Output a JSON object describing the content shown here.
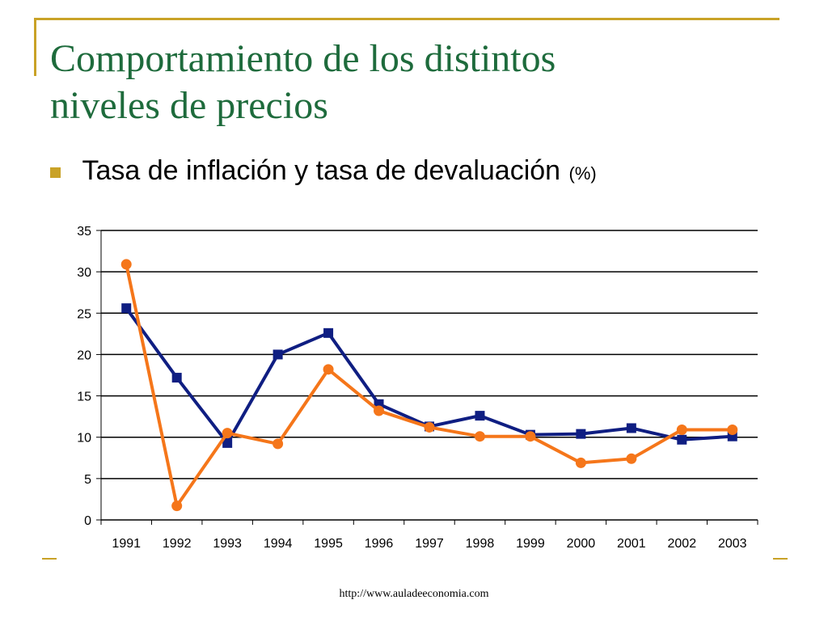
{
  "slide": {
    "title_line1": "Comportamiento de los distintos",
    "title_line2": "niveles de precios",
    "bullet_text": "Tasa de inflación y tasa de devaluación",
    "bullet_unit": "(%)",
    "footer": "http://www.auladeeconomia.com"
  },
  "colors": {
    "accent": "#c9a227",
    "title": "#1e6b3c",
    "series_blue": "#0f1e82",
    "series_orange": "#f5761a"
  },
  "chart_data": {
    "type": "line",
    "categories": [
      "1991",
      "1992",
      "1993",
      "1994",
      "1995",
      "1996",
      "1997",
      "1998",
      "1999",
      "2000",
      "2001",
      "2002",
      "2003"
    ],
    "ylim": [
      0,
      35
    ],
    "yticks": [
      0,
      5,
      10,
      15,
      20,
      25,
      30,
      35
    ],
    "grid": true,
    "series": [
      {
        "color": "#0f1e82",
        "marker": "square",
        "values": [
          25.6,
          17.2,
          9.3,
          20.0,
          22.6,
          14.0,
          11.3,
          12.6,
          10.3,
          10.4,
          11.1,
          9.7,
          10.1
        ]
      },
      {
        "color": "#f5761a",
        "marker": "circle",
        "values": [
          30.9,
          1.7,
          10.5,
          9.2,
          18.2,
          13.2,
          11.2,
          10.1,
          10.1,
          6.9,
          7.4,
          10.9,
          10.9
        ]
      }
    ]
  }
}
